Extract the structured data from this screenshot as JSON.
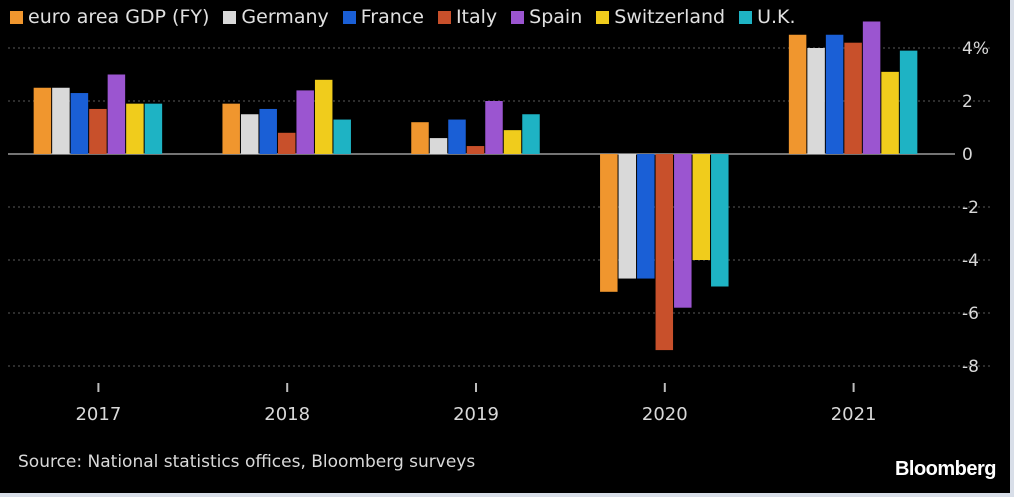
{
  "chart_data": {
    "type": "bar",
    "categories": [
      "2017",
      "2018",
      "2019",
      "2020",
      "2021"
    ],
    "series": [
      {
        "name": "euro area GDP (FY)",
        "color": "#f0962e",
        "values": [
          2.5,
          1.9,
          1.2,
          -5.2,
          4.5
        ]
      },
      {
        "name": "Germany",
        "color": "#d9d9d9",
        "values": [
          2.5,
          1.5,
          0.6,
          -4.7,
          4.0
        ]
      },
      {
        "name": "France",
        "color": "#1a5fd6",
        "values": [
          2.3,
          1.7,
          1.3,
          -4.7,
          4.5
        ]
      },
      {
        "name": "Italy",
        "color": "#c8502b",
        "values": [
          1.7,
          0.8,
          0.3,
          -7.4,
          4.2
        ]
      },
      {
        "name": "Spain",
        "color": "#9b55d0",
        "values": [
          3.0,
          2.4,
          2.0,
          -5.8,
          5.0
        ]
      },
      {
        "name": "Switzerland",
        "color": "#f0cc1c",
        "values": [
          1.9,
          2.8,
          0.9,
          -4.0,
          3.1
        ]
      },
      {
        "name": "U.K.",
        "color": "#1eb3c4",
        "values": [
          1.9,
          1.3,
          1.5,
          -5.0,
          3.9
        ]
      }
    ],
    "ylim": [
      -8,
      4
    ],
    "yticks": [
      4,
      2,
      0,
      -2,
      -4,
      -6,
      -8
    ],
    "ytick_labels": [
      "4%",
      "2",
      "0",
      "-2",
      "-4",
      "-6",
      "-8"
    ],
    "ylabel": "",
    "xlabel": "",
    "grid": true,
    "legend_position": "top-left"
  },
  "source": "Source: National statistics offices, Bloomberg surveys",
  "brand": "Bloomberg"
}
